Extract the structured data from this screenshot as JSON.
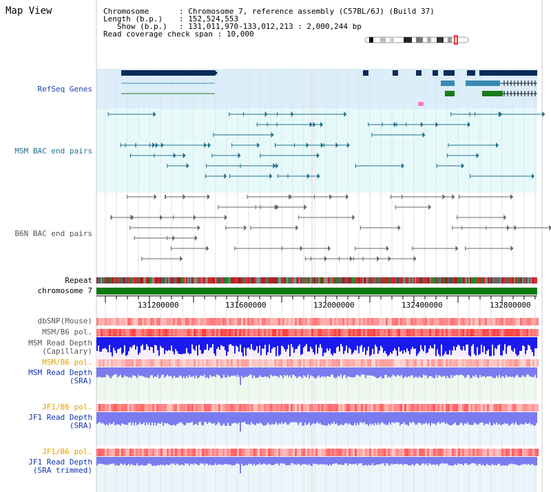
{
  "page": {
    "title": "Map View"
  },
  "header": {
    "chromosome_key": "Chromosome",
    "chromosome_val": "Chromosome 7, reference assembly (C57BL/6J) (Build 37)",
    "length_key": "Length (b.p.)",
    "length_val": "152,524,553",
    "show_key": "Show (b.p.)",
    "show_val": "131,011,970-133,012,213 : 2,000,244 bp",
    "span_key": "Read coverage check span",
    "span_val": "10,000"
  },
  "tracks": {
    "refseq": "RefSeq Genes",
    "msm_bac": "MSM BAC end pairs",
    "b6n_bac": "B6N BAC end pairs",
    "repeat": "Repeat",
    "chromosome": "chromosome 7",
    "dbsnp": "dbSNP(Mouse)",
    "msm_b6_pol": "MSM/B6 pol.",
    "msm_depth_cap_1": "MSM Read Depth",
    "msm_depth_cap_2": "(Capillary)",
    "msm_b6_pol_2": "MSM/B6 pol.",
    "msm_depth_sra_1": "MSM Read Depth",
    "msm_depth_sra_2": "(SRA)",
    "jf1_b6_pol": "JF1/B6 pol.",
    "jf1_depth_sra_1": "JF1 Read Depth",
    "jf1_depth_sra_2": "(SRA)",
    "jf1_b6_pol_2": "JF1/B6 pol.",
    "jf1_depth_trim_1": "JF1 Read Depth",
    "jf1_depth_trim_2": "(SRA trimmed)"
  },
  "axis": {
    "ticks": [
      "131200000",
      "131600000",
      "132000000",
      "132400000",
      "132800000"
    ]
  },
  "colors": {
    "refseq_bg": "#dbeefa",
    "msm_bac_bg": "#e6fafa",
    "b6n_bg": "#ffffff",
    "chromosome_bar": "#0a7a0a",
    "depth_blue": "#1a1aee",
    "sra_blue": "#7b7bf0",
    "pol_red": "#ee4444"
  }
}
